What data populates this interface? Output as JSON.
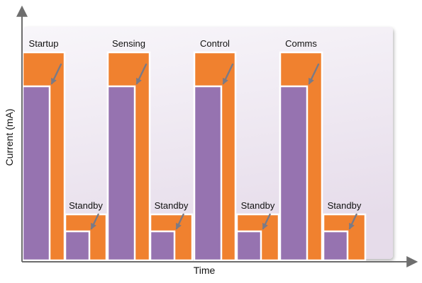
{
  "axes": {
    "x_label": "Time",
    "y_label": "Current (mA)"
  },
  "phases": [
    {
      "label": "Startup",
      "kind": "active"
    },
    {
      "label": "Standby",
      "kind": "standby"
    },
    {
      "label": "Sensing",
      "kind": "active"
    },
    {
      "label": "Standby",
      "kind": "standby"
    },
    {
      "label": "Control",
      "kind": "active"
    },
    {
      "label": "Standby",
      "kind": "standby"
    },
    {
      "label": "Comms",
      "kind": "active"
    },
    {
      "label": "Standby",
      "kind": "standby"
    }
  ],
  "colors": {
    "total_current_fill": "#F0812F",
    "inner_current_fill": "#9673B0",
    "panel_top": "#F8F6FA",
    "panel_bottom": "#E6DCEA",
    "axis": "#6E6E6E",
    "pointer_arrow": "#7A7A86",
    "bar_border": "#FFFFFF"
  }
}
